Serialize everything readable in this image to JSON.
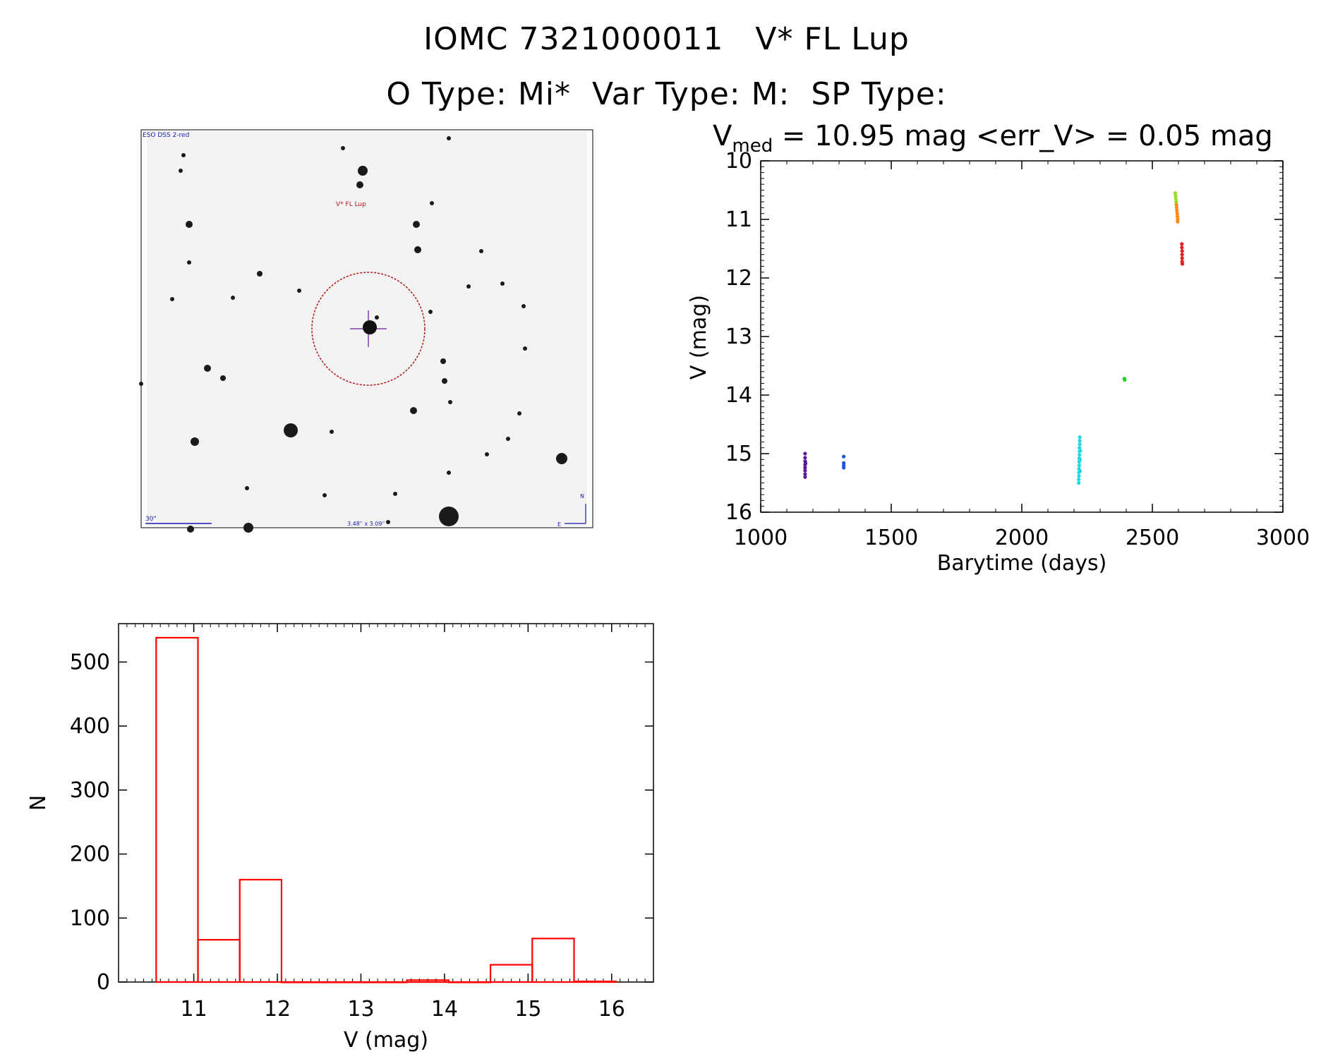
{
  "header": {
    "title_line1": "IOMC 7321000011   V* FL Lup",
    "title_line2": "O Type: Mi*  Var Type: M:  SP Type:",
    "vmed_symbol": "V",
    "vmed_sub": "med",
    "vmed_rest": " = 10.95 mag <err_V> = 0.05 mag"
  },
  "finder": {
    "survey_label": "ESO DSS 2-red",
    "object_label": "V* FL Lup",
    "scale_label": "30\"",
    "fov_label": "3.48'′ x 3.09'′",
    "north_label": "N",
    "east_label": "E",
    "colors": {
      "ink": "#1a1ab0",
      "circle": "#b01818",
      "object": "#b01818",
      "cross": "#8a3aa8"
    }
  },
  "chart_data": [
    {
      "type": "scatter",
      "title": "",
      "xlabel": "Barytime (days)",
      "ylabel": "V (mag)",
      "xlim": [
        1000,
        3000
      ],
      "ylim": [
        16,
        10
      ],
      "y_inverted": true,
      "xticks": [
        1000,
        1500,
        2000,
        2500,
        3000
      ],
      "yticks": [
        10,
        11,
        12,
        13,
        14,
        15,
        16
      ],
      "series": [
        {
          "color": "#5a1a9a",
          "points": [
            [
              1170,
              15.0
            ],
            [
              1170,
              15.07
            ],
            [
              1170,
              15.13
            ],
            [
              1170,
              15.19
            ],
            [
              1170,
              15.24
            ],
            [
              1170,
              15.29
            ],
            [
              1170,
              15.35
            ],
            [
              1170,
              15.4
            ],
            [
              1172,
              15.16
            ]
          ]
        },
        {
          "color": "#1a5acc",
          "points": [
            [
              1318,
              15.05
            ],
            [
              1318,
              15.16
            ],
            [
              1318,
              15.2
            ],
            [
              1318,
              15.24
            ]
          ]
        },
        {
          "color": "#20d8e0",
          "points": [
            [
              2218,
              15.5
            ],
            [
              2218,
              15.44
            ],
            [
              2219,
              15.38
            ],
            [
              2219,
              15.32
            ],
            [
              2219,
              15.26
            ],
            [
              2220,
              15.2
            ],
            [
              2220,
              15.14
            ],
            [
              2220,
              15.08
            ],
            [
              2221,
              15.02
            ],
            [
              2221,
              14.96
            ],
            [
              2221,
              14.9
            ],
            [
              2222,
              14.84
            ],
            [
              2222,
              14.78
            ],
            [
              2222,
              14.72
            ],
            [
              2223,
              15.3
            ],
            [
              2223,
              15.1
            ],
            [
              2224,
              14.95
            ]
          ]
        },
        {
          "color": "#22cc22",
          "points": [
            [
              2393,
              13.72
            ],
            [
              2394,
              13.74
            ]
          ]
        },
        {
          "color": "#99dd22",
          "points": [
            [
              2588,
              10.55
            ],
            [
              2589,
              10.6
            ],
            [
              2590,
              10.65
            ],
            [
              2591,
              10.7
            ],
            [
              2592,
              10.75
            ]
          ]
        },
        {
          "color": "#ff8a10",
          "points": [
            [
              2592,
              10.75
            ],
            [
              2593,
              10.8
            ],
            [
              2594,
              10.85
            ],
            [
              2595,
              10.9
            ],
            [
              2596,
              10.95
            ],
            [
              2597,
              11.0
            ],
            [
              2597,
              11.04
            ]
          ]
        },
        {
          "color": "#e02020",
          "points": [
            [
              2613,
              11.42
            ],
            [
              2613,
              11.48
            ],
            [
              2614,
              11.54
            ],
            [
              2614,
              11.6
            ],
            [
              2614,
              11.66
            ],
            [
              2614,
              11.72
            ],
            [
              2615,
              11.76
            ]
          ]
        }
      ]
    },
    {
      "type": "bar",
      "title": "",
      "xlabel": "V (mag)",
      "ylabel": "N",
      "xlim": [
        10.1,
        16.5
      ],
      "ylim": [
        0,
        560
      ],
      "xticks": [
        11,
        12,
        13,
        14,
        15,
        16
      ],
      "yticks": [
        0,
        100,
        200,
        300,
        400,
        500
      ],
      "bin_width": 0.5,
      "bin_starts": [
        10.55,
        11.05,
        11.55,
        12.05,
        12.55,
        13.05,
        13.55,
        14.05,
        14.55,
        15.05,
        15.55
      ],
      "values": [
        538,
        66,
        160,
        0,
        0,
        0,
        3,
        0,
        27,
        68,
        1
      ],
      "color": "#ff0000"
    }
  ]
}
